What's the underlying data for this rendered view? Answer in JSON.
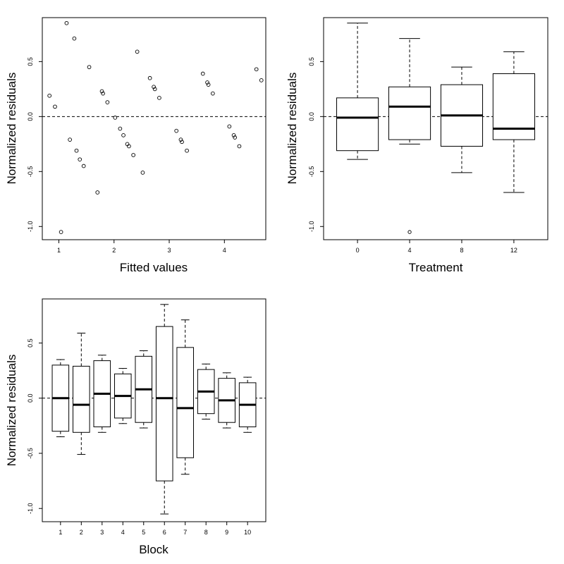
{
  "chart_data": [
    {
      "type": "scatter",
      "xlabel": "Fitted values",
      "ylabel": "Normalized residuals",
      "xlim": [
        0.7,
        4.75
      ],
      "ylim": [
        -1.12,
        0.9
      ],
      "x_ticks": [
        1,
        2,
        3,
        4
      ],
      "y_ticks": [
        -1.0,
        -0.5,
        0.0,
        0.5
      ],
      "y_tick_labels": [
        "-1.0",
        "-0.5",
        "0.0",
        "0.5"
      ],
      "reference_line": 0,
      "points": [
        {
          "x": 0.83,
          "y": 0.19
        },
        {
          "x": 0.93,
          "y": 0.09
        },
        {
          "x": 1.04,
          "y": -1.05
        },
        {
          "x": 1.14,
          "y": 0.85
        },
        {
          "x": 1.2,
          "y": -0.21
        },
        {
          "x": 1.28,
          "y": 0.71
        },
        {
          "x": 1.32,
          "y": -0.31
        },
        {
          "x": 1.38,
          "y": -0.39
        },
        {
          "x": 1.45,
          "y": -0.45
        },
        {
          "x": 1.55,
          "y": 0.45
        },
        {
          "x": 1.7,
          "y": -0.69
        },
        {
          "x": 1.78,
          "y": 0.23
        },
        {
          "x": 1.8,
          "y": 0.21
        },
        {
          "x": 1.88,
          "y": 0.13
        },
        {
          "x": 2.02,
          "y": -0.01
        },
        {
          "x": 2.11,
          "y": -0.11
        },
        {
          "x": 2.17,
          "y": -0.17
        },
        {
          "x": 2.24,
          "y": -0.25
        },
        {
          "x": 2.27,
          "y": -0.27
        },
        {
          "x": 2.35,
          "y": -0.35
        },
        {
          "x": 2.42,
          "y": 0.59
        },
        {
          "x": 2.52,
          "y": -0.51
        },
        {
          "x": 2.65,
          "y": 0.35
        },
        {
          "x": 2.72,
          "y": 0.27
        },
        {
          "x": 2.74,
          "y": 0.25
        },
        {
          "x": 2.82,
          "y": 0.17
        },
        {
          "x": 3.13,
          "y": -0.13
        },
        {
          "x": 3.21,
          "y": -0.21
        },
        {
          "x": 3.23,
          "y": -0.23
        },
        {
          "x": 3.32,
          "y": -0.31
        },
        {
          "x": 3.61,
          "y": 0.39
        },
        {
          "x": 3.69,
          "y": 0.31
        },
        {
          "x": 3.71,
          "y": 0.29
        },
        {
          "x": 3.79,
          "y": 0.21
        },
        {
          "x": 4.09,
          "y": -0.09
        },
        {
          "x": 4.17,
          "y": -0.17
        },
        {
          "x": 4.19,
          "y": -0.19
        },
        {
          "x": 4.27,
          "y": -0.27
        },
        {
          "x": 4.58,
          "y": 0.43
        },
        {
          "x": 4.67,
          "y": 0.33
        }
      ]
    },
    {
      "type": "box",
      "xlabel": "Treatment",
      "ylabel": "Normalized residuals",
      "ylim": [
        -1.12,
        0.9
      ],
      "y_ticks": [
        -1.0,
        -0.5,
        0.0,
        0.5
      ],
      "y_tick_labels": [
        "-1.0",
        "-0.5",
        "0.0",
        "0.5"
      ],
      "reference_line": 0,
      "categories": [
        "0",
        "4",
        "8",
        "12"
      ],
      "boxes": [
        {
          "whisker_low": -0.39,
          "q1": -0.31,
          "median": -0.01,
          "q3": 0.17,
          "whisker_high": 0.85,
          "outliers": []
        },
        {
          "whisker_low": -0.25,
          "q1": -0.21,
          "median": 0.09,
          "q3": 0.27,
          "whisker_high": 0.71,
          "outliers": [
            -1.05
          ]
        },
        {
          "whisker_low": -0.51,
          "q1": -0.27,
          "median": 0.01,
          "q3": 0.29,
          "whisker_high": 0.45,
          "outliers": []
        },
        {
          "whisker_low": -0.69,
          "q1": -0.21,
          "median": -0.11,
          "q3": 0.39,
          "whisker_high": 0.59,
          "outliers": []
        }
      ]
    },
    {
      "type": "box",
      "xlabel": "Block",
      "ylabel": "Normalized residuals",
      "ylim": [
        -1.12,
        0.9
      ],
      "y_ticks": [
        -1.0,
        -0.5,
        0.0,
        0.5
      ],
      "y_tick_labels": [
        "-1.0",
        "-0.5",
        "0.0",
        "0.5"
      ],
      "reference_line": 0,
      "categories": [
        "1",
        "2",
        "3",
        "4",
        "5",
        "6",
        "7",
        "8",
        "9",
        "10"
      ],
      "boxes": [
        {
          "whisker_low": -0.35,
          "q1": -0.3,
          "median": 0.0,
          "q3": 0.3,
          "whisker_high": 0.35,
          "outliers": []
        },
        {
          "whisker_low": -0.51,
          "q1": -0.31,
          "median": -0.06,
          "q3": 0.29,
          "whisker_high": 0.59,
          "outliers": []
        },
        {
          "whisker_low": -0.31,
          "q1": -0.26,
          "median": 0.04,
          "q3": 0.34,
          "whisker_high": 0.39,
          "outliers": []
        },
        {
          "whisker_low": -0.23,
          "q1": -0.18,
          "median": 0.02,
          "q3": 0.22,
          "whisker_high": 0.27,
          "outliers": []
        },
        {
          "whisker_low": -0.27,
          "q1": -0.22,
          "median": 0.08,
          "q3": 0.38,
          "whisker_high": 0.43,
          "outliers": []
        },
        {
          "whisker_low": -1.05,
          "q1": -0.75,
          "median": 0.0,
          "q3": 0.65,
          "whisker_high": 0.85,
          "outliers": []
        },
        {
          "whisker_low": -0.69,
          "q1": -0.54,
          "median": -0.09,
          "q3": 0.46,
          "whisker_high": 0.71,
          "outliers": []
        },
        {
          "whisker_low": -0.19,
          "q1": -0.14,
          "median": 0.06,
          "q3": 0.26,
          "whisker_high": 0.31,
          "outliers": []
        },
        {
          "whisker_low": -0.27,
          "q1": -0.22,
          "median": -0.02,
          "q3": 0.18,
          "whisker_high": 0.23,
          "outliers": []
        },
        {
          "whisker_low": -0.31,
          "q1": -0.26,
          "median": -0.06,
          "q3": 0.14,
          "whisker_high": 0.19,
          "outliers": []
        }
      ]
    }
  ]
}
